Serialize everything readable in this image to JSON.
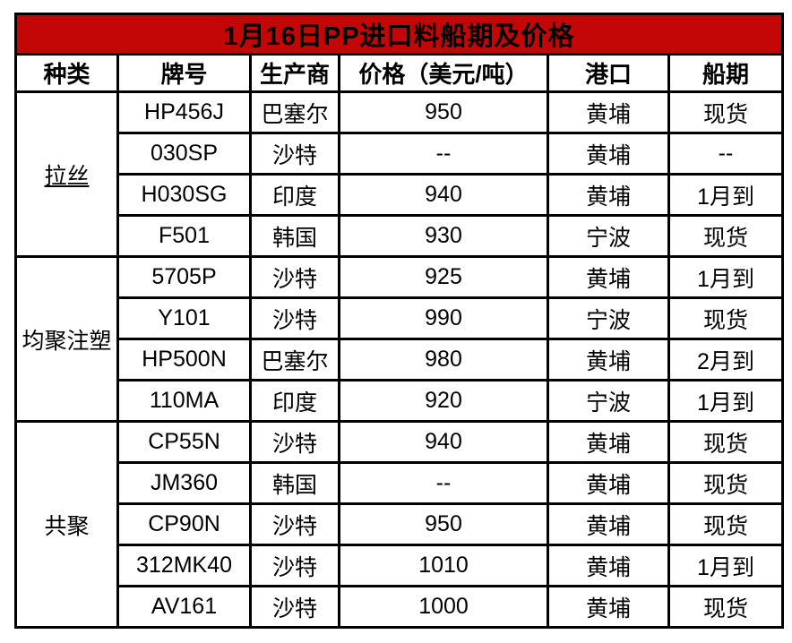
{
  "chart_data": {
    "type": "table",
    "title": "1月16日PP进口料船期及价格",
    "columns": [
      "种类",
      "牌号",
      "生产商",
      "价格（美元/吨）",
      "港口",
      "船期"
    ],
    "groups": [
      {
        "category": "拉丝",
        "underline": true,
        "rows": [
          {
            "grade": "HP456J",
            "producer": "巴塞尔",
            "price": "950",
            "port": "黄埔",
            "shipment": "现货"
          },
          {
            "grade": "030SP",
            "producer": "沙特",
            "price": "--",
            "port": "黄埔",
            "shipment": "--"
          },
          {
            "grade": "H030SG",
            "producer": "印度",
            "price": "940",
            "port": "黄埔",
            "shipment": "1月到"
          },
          {
            "grade": "F501",
            "producer": "韩国",
            "price": "930",
            "port": "宁波",
            "shipment": "现货"
          }
        ]
      },
      {
        "category": "均聚注塑",
        "underline": false,
        "rows": [
          {
            "grade": "5705P",
            "producer": "沙特",
            "price": "925",
            "port": "黄埔",
            "shipment": "1月到"
          },
          {
            "grade": "Y101",
            "producer": "沙特",
            "price": "990",
            "port": "宁波",
            "shipment": "现货"
          },
          {
            "grade": "HP500N",
            "producer": "巴塞尔",
            "price": "980",
            "port": "黄埔",
            "shipment": "2月到"
          },
          {
            "grade": "110MA",
            "producer": "印度",
            "price": "920",
            "port": "宁波",
            "shipment": "1月到"
          }
        ]
      },
      {
        "category": "共聚",
        "underline": false,
        "rows": [
          {
            "grade": "CP55N",
            "producer": "沙特",
            "price": "940",
            "port": "黄埔",
            "shipment": "现货"
          },
          {
            "grade": "JM360",
            "producer": "韩国",
            "price": "--",
            "port": "黄埔",
            "shipment": "现货"
          },
          {
            "grade": "CP90N",
            "producer": "沙特",
            "price": "950",
            "port": "黄埔",
            "shipment": "现货"
          },
          {
            "grade": "312MK40",
            "producer": "沙特",
            "price": "1010",
            "port": "黄埔",
            "shipment": "1月到"
          },
          {
            "grade": "AV161",
            "producer": "沙特",
            "price": "1000",
            "port": "黄埔",
            "shipment": "现货"
          }
        ]
      }
    ],
    "layout": {
      "legend": "none",
      "grid": "all-borders"
    }
  },
  "colors": {
    "title_bg": "#c30606",
    "title_text": "#ffffff",
    "border": "#000000",
    "cell_bg": "#ffffff",
    "cell_text": "#000000"
  }
}
